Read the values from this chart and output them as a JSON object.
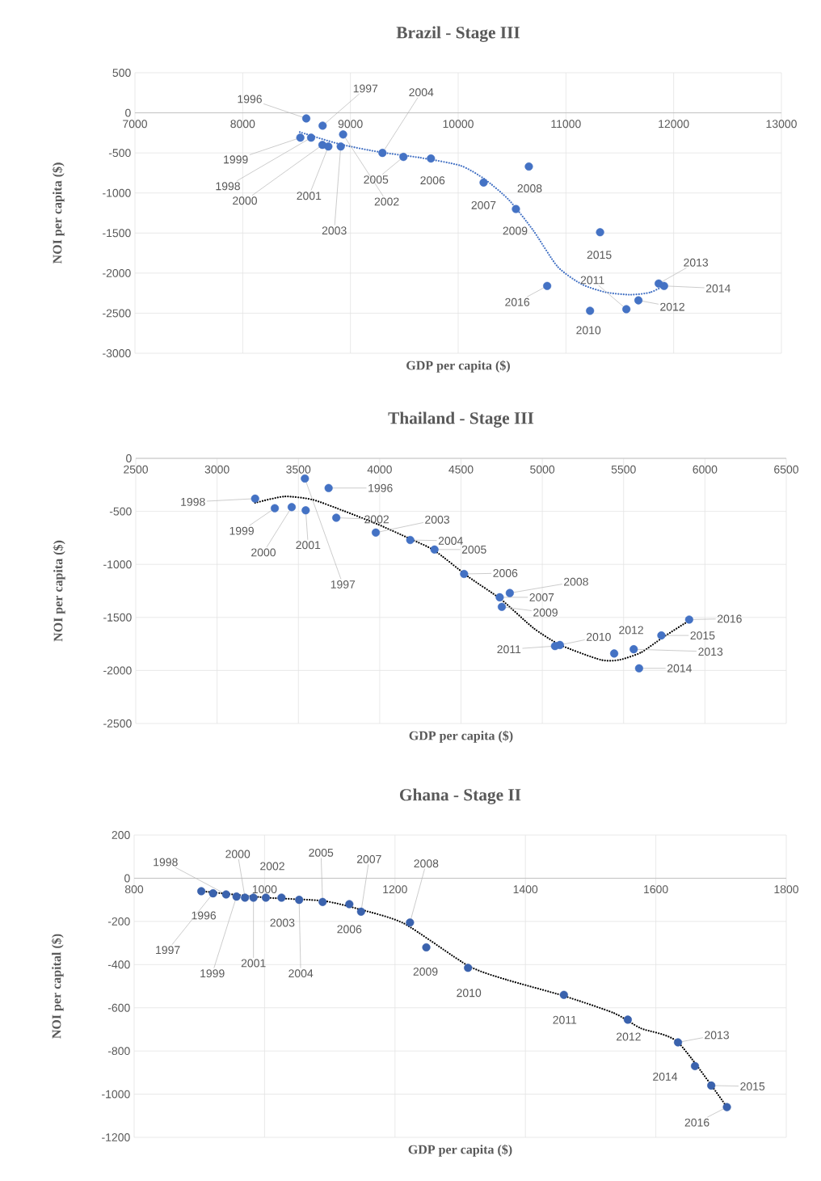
{
  "chart_data": [
    {
      "type": "scatter",
      "title": "Brazil - Stage III",
      "xlabel": "GDP per capita ($)",
      "ylabel": "NOI per capita ($)",
      "xlim": [
        7000,
        13000
      ],
      "ylim": [
        -3000,
        500
      ],
      "xticks": [
        7000,
        8000,
        9000,
        10000,
        11000,
        12000,
        13000
      ],
      "yticks": [
        -3000,
        -2500,
        -2000,
        -1500,
        -1000,
        -500,
        0,
        500
      ],
      "grid": true,
      "marker": "circle",
      "series": [
        {
          "color": "#4472c4",
          "x": [
            8590,
            8742,
            8635,
            8535,
            8740,
            8795,
            8932,
            8910,
            9297,
            9492,
            9747,
            10236,
            10656,
            10536,
            11224,
            11561,
            11673,
            11861,
            11911,
            11317,
            10826
          ],
          "values": [
            -70,
            -160,
            -310,
            -310,
            -400,
            -420,
            -270,
            -420,
            -500,
            -550,
            -570,
            -870,
            -670,
            -1200,
            -2470,
            -2450,
            -2340,
            -2130,
            -2160,
            -1490,
            -2160
          ]
        },
        {
          "type": "line",
          "line_style": "dotted",
          "marker": "none",
          "color": "#4472c4",
          "x": [
            8530,
            8898,
            9273,
            9648,
            10023,
            10248,
            10473,
            10698,
            10923,
            11148,
            11373,
            11598,
            11785,
            11935
          ],
          "values": [
            -240,
            -390,
            -490,
            -560,
            -660,
            -830,
            -1090,
            -1470,
            -1920,
            -2140,
            -2240,
            -2270,
            -2240,
            -2140
          ]
        }
      ],
      "annotations": [
        {
          "text": "1996",
          "x": 8590,
          "y": -70
        },
        {
          "text": "1997",
          "x": 8742,
          "y": -160
        },
        {
          "text": "1998",
          "x": 8635,
          "y": -310
        },
        {
          "text": "1999",
          "x": 8535,
          "y": -310
        },
        {
          "text": "2000",
          "x": 8740,
          "y": -400
        },
        {
          "text": "2001",
          "x": 8795,
          "y": -420
        },
        {
          "text": "2002",
          "x": 8932,
          "y": -270
        },
        {
          "text": "2003",
          "x": 8910,
          "y": -420
        },
        {
          "text": "2004",
          "x": 9297,
          "y": -500
        },
        {
          "text": "2005",
          "x": 9492,
          "y": -550
        },
        {
          "text": "2006",
          "x": 9747,
          "y": -570
        },
        {
          "text": "2007",
          "x": 10236,
          "y": -870
        },
        {
          "text": "2008",
          "x": 10656,
          "y": -670
        },
        {
          "text": "2009",
          "x": 10536,
          "y": -1200
        },
        {
          "text": "2010",
          "x": 11224,
          "y": -2470
        },
        {
          "text": "2011",
          "x": 11561,
          "y": -2450
        },
        {
          "text": "2012",
          "x": 11673,
          "y": -2340
        },
        {
          "text": "2013",
          "x": 11861,
          "y": -2130
        },
        {
          "text": "2014",
          "x": 11911,
          "y": -2160
        },
        {
          "text": "2015",
          "x": 11317,
          "y": -1490
        },
        {
          "text": "2016",
          "x": 10826,
          "y": -2160
        }
      ]
    },
    {
      "type": "scatter",
      "title": "Thailand - Stage III",
      "xlabel": "GDP per capita ($)",
      "ylabel": "NOI per capita ($)",
      "xlim": [
        2500,
        6500
      ],
      "ylim": [
        -2500,
        0
      ],
      "xticks": [
        2500,
        3000,
        3500,
        4000,
        4500,
        5000,
        5500,
        6000,
        6500
      ],
      "yticks": [
        -2500,
        -2000,
        -1500,
        -1000,
        -500,
        0
      ],
      "grid": true,
      "marker": "circle",
      "series": [
        {
          "color": "#4472c4",
          "x": [
            3686,
            3540,
            3234,
            3355,
            3459,
            3545,
            3733,
            3976,
            4188,
            4337,
            4519,
            4738,
            4800,
            4751,
            5108,
            5078,
            5442,
            5562,
            5595,
            5732,
            5903
          ],
          "values": [
            -280,
            -190,
            -380,
            -470,
            -460,
            -490,
            -560,
            -700,
            -770,
            -860,
            -1090,
            -1310,
            -1270,
            -1400,
            -1760,
            -1770,
            -1840,
            -1800,
            -1980,
            -1670,
            -1520
          ]
        },
        {
          "type": "line",
          "line_style": "dotted",
          "marker": "none",
          "color": "#000000",
          "x": [
            3234,
            3413,
            3587,
            3786,
            3985,
            4188,
            4337,
            4548,
            4746,
            4945,
            5111,
            5359,
            5475,
            5608,
            5740,
            5903
          ],
          "values": [
            -420,
            -360,
            -390,
            -500,
            -620,
            -760,
            -870,
            -1120,
            -1330,
            -1600,
            -1760,
            -1900,
            -1900,
            -1830,
            -1690,
            -1530
          ]
        }
      ],
      "annotations": [
        {
          "text": "1996",
          "x": 3686,
          "y": -280
        },
        {
          "text": "1997",
          "x": 3540,
          "y": -190
        },
        {
          "text": "1998",
          "x": 3234,
          "y": -380
        },
        {
          "text": "1999",
          "x": 3355,
          "y": -470
        },
        {
          "text": "2000",
          "x": 3459,
          "y": -460
        },
        {
          "text": "2001",
          "x": 3545,
          "y": -490
        },
        {
          "text": "2002",
          "x": 3733,
          "y": -560
        },
        {
          "text": "2003",
          "x": 3976,
          "y": -700
        },
        {
          "text": "2004",
          "x": 4188,
          "y": -770
        },
        {
          "text": "2005",
          "x": 4337,
          "y": -860
        },
        {
          "text": "2006",
          "x": 4519,
          "y": -1090
        },
        {
          "text": "2007",
          "x": 4738,
          "y": -1310
        },
        {
          "text": "2008",
          "x": 4800,
          "y": -1270
        },
        {
          "text": "2009",
          "x": 4751,
          "y": -1400
        },
        {
          "text": "2010",
          "x": 5108,
          "y": -1760
        },
        {
          "text": "2011",
          "x": 5078,
          "y": -1770
        },
        {
          "text": "2012",
          "x": 5442,
          "y": -1840
        },
        {
          "text": "2013",
          "x": 5562,
          "y": -1800
        },
        {
          "text": "2014",
          "x": 5595,
          "y": -1980
        },
        {
          "text": "2015",
          "x": 5732,
          "y": -1670
        },
        {
          "text": "2016",
          "x": 5903,
          "y": -1520
        }
      ]
    },
    {
      "type": "scatter",
      "title": "Ghana - Stage II",
      "xlabel": "GDP per capita ($)",
      "ylabel": "NOI per capital ($)",
      "xlim": [
        800,
        1800
      ],
      "ylim": [
        -1200,
        200
      ],
      "xticks": [
        800,
        1000,
        1200,
        1400,
        1600,
        1800
      ],
      "yticks": [
        -1200,
        -1000,
        -800,
        -600,
        -400,
        -200,
        0,
        200
      ],
      "grid": true,
      "marker": "circle",
      "series": [
        {
          "color": "#3a62ad",
          "x": [
            903,
            921,
            941,
            957,
            970,
            983,
            1002,
            1026,
            1053,
            1089,
            1130,
            1148,
            1223,
            1248,
            1312,
            1459,
            1557,
            1634,
            1660,
            1685,
            1709
          ],
          "values": [
            -60,
            -70,
            -75,
            -85,
            -90,
            -90,
            -90,
            -90,
            -100,
            -110,
            -120,
            -155,
            -205,
            -320,
            -415,
            -540,
            -655,
            -760,
            -870,
            -960,
            -1060
          ]
        },
        {
          "type": "line",
          "line_style": "dotted",
          "marker": "none",
          "color": "#000000",
          "x": [
            903,
            1003,
            1090,
            1147,
            1214,
            1312,
            1371,
            1459,
            1536,
            1577,
            1634,
            1709
          ],
          "values": [
            -60,
            -90,
            -105,
            -145,
            -210,
            -405,
            -470,
            -545,
            -625,
            -695,
            -760,
            -1060
          ]
        }
      ],
      "annotations": [
        {
          "text": "1996",
          "x": 903,
          "y": -60
        },
        {
          "text": "1997",
          "x": 921,
          "y": -70
        },
        {
          "text": "1998",
          "x": 941,
          "y": -75
        },
        {
          "text": "1999",
          "x": 957,
          "y": -85
        },
        {
          "text": "2000",
          "x": 970,
          "y": -90
        },
        {
          "text": "2001",
          "x": 983,
          "y": -90
        },
        {
          "text": "2002",
          "x": 1002,
          "y": -90
        },
        {
          "text": "2003",
          "x": 1026,
          "y": -90
        },
        {
          "text": "2004",
          "x": 1053,
          "y": -100
        },
        {
          "text": "2005",
          "x": 1089,
          "y": -110
        },
        {
          "text": "2006",
          "x": 1130,
          "y": -120
        },
        {
          "text": "2007",
          "x": 1148,
          "y": -155
        },
        {
          "text": "2008",
          "x": 1223,
          "y": -205
        },
        {
          "text": "2009",
          "x": 1248,
          "y": -320
        },
        {
          "text": "2010",
          "x": 1312,
          "y": -415
        },
        {
          "text": "2011",
          "x": 1459,
          "y": -540
        },
        {
          "text": "2012",
          "x": 1557,
          "y": -655
        },
        {
          "text": "2013",
          "x": 1634,
          "y": -760
        },
        {
          "text": "2014",
          "x": 1660,
          "y": -870
        },
        {
          "text": "2015",
          "x": 1685,
          "y": -960
        },
        {
          "text": "2016",
          "x": 1709,
          "y": -1060
        }
      ]
    }
  ]
}
